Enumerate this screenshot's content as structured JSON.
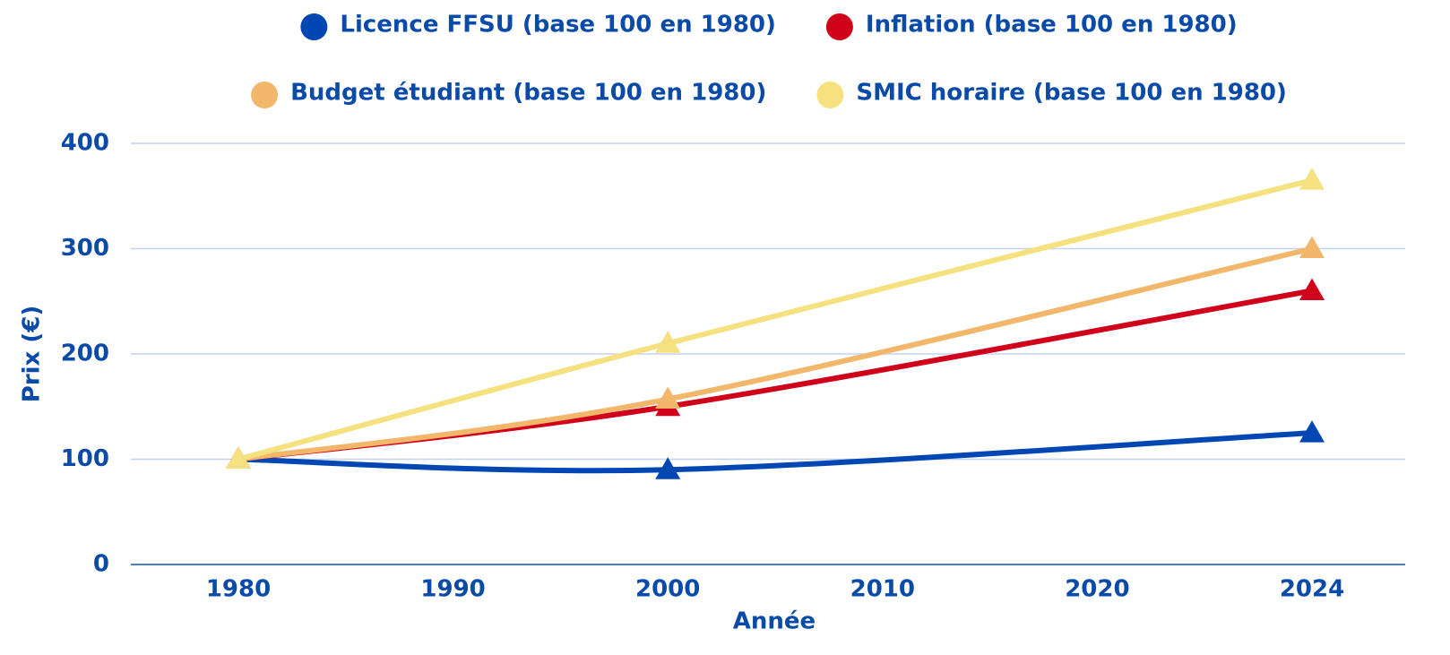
{
  "chart_data": {
    "type": "line",
    "x": [
      1980,
      2000,
      2024
    ],
    "xticks": [
      1980,
      1990,
      2000,
      2010,
      2020,
      2024
    ],
    "xlim": [
      1980,
      2024
    ],
    "ylim": [
      0,
      400
    ],
    "yticks": [
      0,
      100,
      200,
      300,
      400
    ],
    "grid": true,
    "xlabel": "Année",
    "ylabel": "Prix (€)",
    "legend": "top",
    "series": [
      {
        "name": "Licence FFSU (base 100 en 1980)",
        "color": "#0047b3",
        "values": [
          100,
          90,
          125
        ]
      },
      {
        "name": "Inflation (base 100 en 1980)",
        "color": "#d0021b",
        "values": [
          100,
          150,
          260
        ]
      },
      {
        "name": "Budget étudiant (base 100 en 1980)",
        "color": "#f2b76a",
        "values": [
          100,
          157,
          300
        ]
      },
      {
        "name": "SMIC horaire (base 100 en 1980)",
        "color": "#f5e17f",
        "values": [
          100,
          210,
          365
        ]
      }
    ]
  }
}
